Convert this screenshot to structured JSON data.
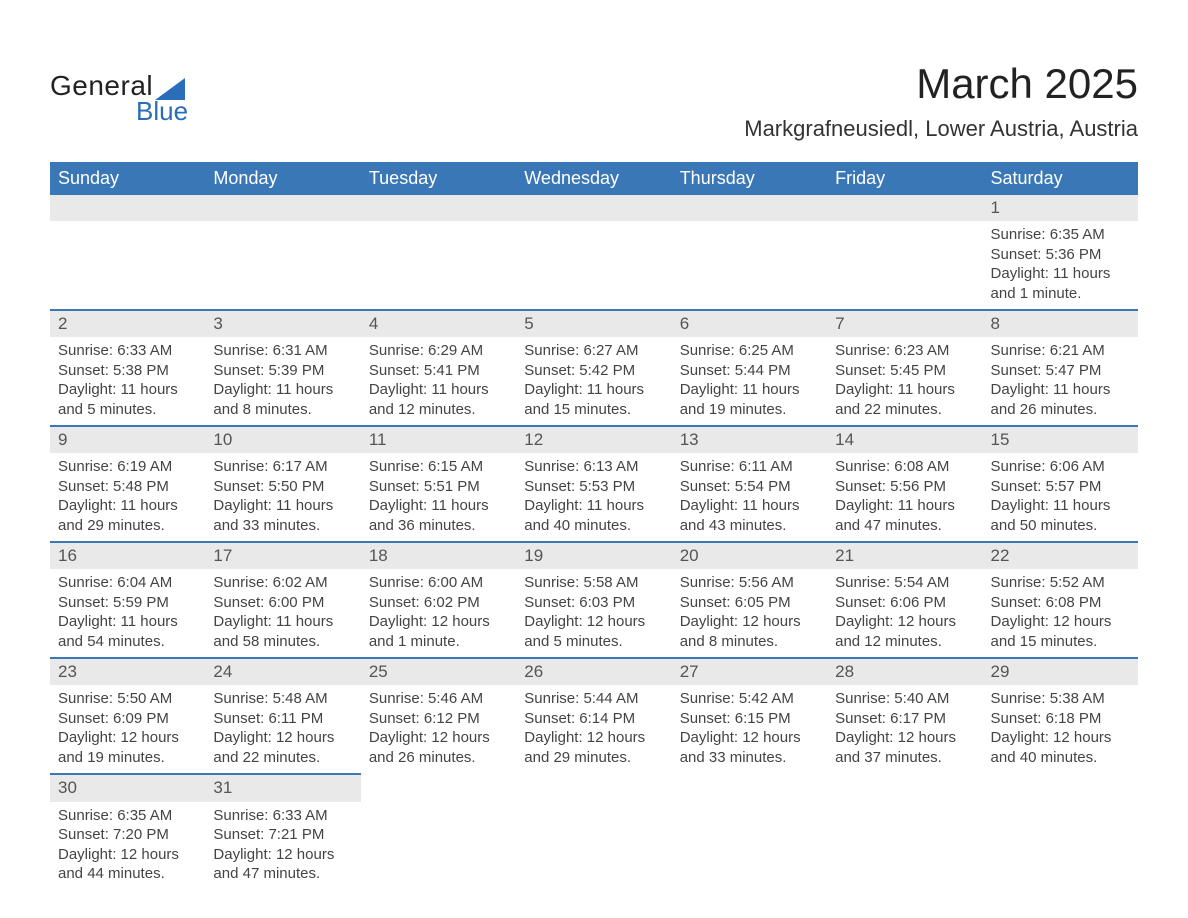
{
  "logo": {
    "top": "General",
    "bottom": "Blue",
    "accent_color": "#2a6db8"
  },
  "title": "March 2025",
  "location": "Markgrafneusiedl, Lower Austria, Austria",
  "colors": {
    "header_bg": "#3a77b7",
    "header_text": "#ffffff",
    "daynum_bg": "#e9e9e9",
    "daynum_text": "#555555",
    "row_divider": "#3a77b7",
    "body_text": "#444444",
    "page_bg": "#ffffff"
  },
  "typography": {
    "title_fontsize": 42,
    "location_fontsize": 22,
    "dayheader_fontsize": 18,
    "daynum_fontsize": 17,
    "cell_fontsize": 15
  },
  "day_headers": [
    "Sunday",
    "Monday",
    "Tuesday",
    "Wednesday",
    "Thursday",
    "Friday",
    "Saturday"
  ],
  "weeks": [
    [
      null,
      null,
      null,
      null,
      null,
      null,
      {
        "n": "1",
        "sunrise": "Sunrise: 6:35 AM",
        "sunset": "Sunset: 5:36 PM",
        "daylight": "Daylight: 11 hours and 1 minute."
      }
    ],
    [
      {
        "n": "2",
        "sunrise": "Sunrise: 6:33 AM",
        "sunset": "Sunset: 5:38 PM",
        "daylight": "Daylight: 11 hours and 5 minutes."
      },
      {
        "n": "3",
        "sunrise": "Sunrise: 6:31 AM",
        "sunset": "Sunset: 5:39 PM",
        "daylight": "Daylight: 11 hours and 8 minutes."
      },
      {
        "n": "4",
        "sunrise": "Sunrise: 6:29 AM",
        "sunset": "Sunset: 5:41 PM",
        "daylight": "Daylight: 11 hours and 12 minutes."
      },
      {
        "n": "5",
        "sunrise": "Sunrise: 6:27 AM",
        "sunset": "Sunset: 5:42 PM",
        "daylight": "Daylight: 11 hours and 15 minutes."
      },
      {
        "n": "6",
        "sunrise": "Sunrise: 6:25 AM",
        "sunset": "Sunset: 5:44 PM",
        "daylight": "Daylight: 11 hours and 19 minutes."
      },
      {
        "n": "7",
        "sunrise": "Sunrise: 6:23 AM",
        "sunset": "Sunset: 5:45 PM",
        "daylight": "Daylight: 11 hours and 22 minutes."
      },
      {
        "n": "8",
        "sunrise": "Sunrise: 6:21 AM",
        "sunset": "Sunset: 5:47 PM",
        "daylight": "Daylight: 11 hours and 26 minutes."
      }
    ],
    [
      {
        "n": "9",
        "sunrise": "Sunrise: 6:19 AM",
        "sunset": "Sunset: 5:48 PM",
        "daylight": "Daylight: 11 hours and 29 minutes."
      },
      {
        "n": "10",
        "sunrise": "Sunrise: 6:17 AM",
        "sunset": "Sunset: 5:50 PM",
        "daylight": "Daylight: 11 hours and 33 minutes."
      },
      {
        "n": "11",
        "sunrise": "Sunrise: 6:15 AM",
        "sunset": "Sunset: 5:51 PM",
        "daylight": "Daylight: 11 hours and 36 minutes."
      },
      {
        "n": "12",
        "sunrise": "Sunrise: 6:13 AM",
        "sunset": "Sunset: 5:53 PM",
        "daylight": "Daylight: 11 hours and 40 minutes."
      },
      {
        "n": "13",
        "sunrise": "Sunrise: 6:11 AM",
        "sunset": "Sunset: 5:54 PM",
        "daylight": "Daylight: 11 hours and 43 minutes."
      },
      {
        "n": "14",
        "sunrise": "Sunrise: 6:08 AM",
        "sunset": "Sunset: 5:56 PM",
        "daylight": "Daylight: 11 hours and 47 minutes."
      },
      {
        "n": "15",
        "sunrise": "Sunrise: 6:06 AM",
        "sunset": "Sunset: 5:57 PM",
        "daylight": "Daylight: 11 hours and 50 minutes."
      }
    ],
    [
      {
        "n": "16",
        "sunrise": "Sunrise: 6:04 AM",
        "sunset": "Sunset: 5:59 PM",
        "daylight": "Daylight: 11 hours and 54 minutes."
      },
      {
        "n": "17",
        "sunrise": "Sunrise: 6:02 AM",
        "sunset": "Sunset: 6:00 PM",
        "daylight": "Daylight: 11 hours and 58 minutes."
      },
      {
        "n": "18",
        "sunrise": "Sunrise: 6:00 AM",
        "sunset": "Sunset: 6:02 PM",
        "daylight": "Daylight: 12 hours and 1 minute."
      },
      {
        "n": "19",
        "sunrise": "Sunrise: 5:58 AM",
        "sunset": "Sunset: 6:03 PM",
        "daylight": "Daylight: 12 hours and 5 minutes."
      },
      {
        "n": "20",
        "sunrise": "Sunrise: 5:56 AM",
        "sunset": "Sunset: 6:05 PM",
        "daylight": "Daylight: 12 hours and 8 minutes."
      },
      {
        "n": "21",
        "sunrise": "Sunrise: 5:54 AM",
        "sunset": "Sunset: 6:06 PM",
        "daylight": "Daylight: 12 hours and 12 minutes."
      },
      {
        "n": "22",
        "sunrise": "Sunrise: 5:52 AM",
        "sunset": "Sunset: 6:08 PM",
        "daylight": "Daylight: 12 hours and 15 minutes."
      }
    ],
    [
      {
        "n": "23",
        "sunrise": "Sunrise: 5:50 AM",
        "sunset": "Sunset: 6:09 PM",
        "daylight": "Daylight: 12 hours and 19 minutes."
      },
      {
        "n": "24",
        "sunrise": "Sunrise: 5:48 AM",
        "sunset": "Sunset: 6:11 PM",
        "daylight": "Daylight: 12 hours and 22 minutes."
      },
      {
        "n": "25",
        "sunrise": "Sunrise: 5:46 AM",
        "sunset": "Sunset: 6:12 PM",
        "daylight": "Daylight: 12 hours and 26 minutes."
      },
      {
        "n": "26",
        "sunrise": "Sunrise: 5:44 AM",
        "sunset": "Sunset: 6:14 PM",
        "daylight": "Daylight: 12 hours and 29 minutes."
      },
      {
        "n": "27",
        "sunrise": "Sunrise: 5:42 AM",
        "sunset": "Sunset: 6:15 PM",
        "daylight": "Daylight: 12 hours and 33 minutes."
      },
      {
        "n": "28",
        "sunrise": "Sunrise: 5:40 AM",
        "sunset": "Sunset: 6:17 PM",
        "daylight": "Daylight: 12 hours and 37 minutes."
      },
      {
        "n": "29",
        "sunrise": "Sunrise: 5:38 AM",
        "sunset": "Sunset: 6:18 PM",
        "daylight": "Daylight: 12 hours and 40 minutes."
      }
    ],
    [
      {
        "n": "30",
        "sunrise": "Sunrise: 6:35 AM",
        "sunset": "Sunset: 7:20 PM",
        "daylight": "Daylight: 12 hours and 44 minutes."
      },
      {
        "n": "31",
        "sunrise": "Sunrise: 6:33 AM",
        "sunset": "Sunset: 7:21 PM",
        "daylight": "Daylight: 12 hours and 47 minutes."
      },
      null,
      null,
      null,
      null,
      null
    ]
  ]
}
